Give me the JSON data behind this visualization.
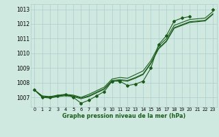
{
  "x": [
    0,
    1,
    2,
    3,
    4,
    5,
    6,
    7,
    8,
    9,
    10,
    11,
    12,
    13,
    14,
    15,
    16,
    17,
    18,
    19,
    20,
    21,
    22,
    23
  ],
  "y_main": [
    1007.5,
    1007.0,
    1007.0,
    1007.1,
    1007.2,
    1007.0,
    1006.6,
    1006.8,
    1007.1,
    1007.4,
    1008.1,
    1008.1,
    1007.8,
    1007.9,
    1008.1,
    1009.0,
    1010.6,
    1011.2,
    1012.2,
    1012.4,
    1012.5,
    null,
    null,
    1013.0
  ],
  "y_trend1": [
    1007.5,
    1007.1,
    1007.05,
    1007.15,
    1007.2,
    1007.15,
    1007.0,
    1007.2,
    1007.45,
    1007.7,
    1008.25,
    1008.35,
    1008.3,
    1008.55,
    1008.8,
    1009.5,
    1010.5,
    1011.0,
    1011.9,
    1012.1,
    1012.3,
    1012.35,
    1012.4,
    1012.85
  ],
  "y_trend2": [
    1007.5,
    1007.05,
    1007.0,
    1007.1,
    1007.15,
    1007.1,
    1006.95,
    1007.1,
    1007.35,
    1007.6,
    1008.15,
    1008.2,
    1008.15,
    1008.35,
    1008.6,
    1009.35,
    1010.35,
    1010.85,
    1011.75,
    1011.95,
    1012.15,
    1012.2,
    1012.25,
    1012.7
  ],
  "y_trend3": [
    1007.5,
    1007.0,
    1006.95,
    1007.05,
    1007.1,
    1007.05,
    1006.9,
    1007.05,
    1007.3,
    1007.55,
    1008.1,
    1008.15,
    1008.1,
    1008.3,
    1008.55,
    1009.3,
    1010.3,
    1010.8,
    1011.7,
    1011.9,
    1012.1,
    1012.15,
    1012.2,
    1012.65
  ],
  "bg_color": "#cfe8e0",
  "grid_color": "#aacccc",
  "line_color": "#1a5c1a",
  "ylabel_values": [
    1007,
    1008,
    1009,
    1010,
    1011,
    1012,
    1013
  ],
  "xlabel": "Graphe pression niveau de la mer (hPa)",
  "ylim": [
    1006.35,
    1013.35
  ],
  "xlim": [
    -0.5,
    23.5
  ]
}
